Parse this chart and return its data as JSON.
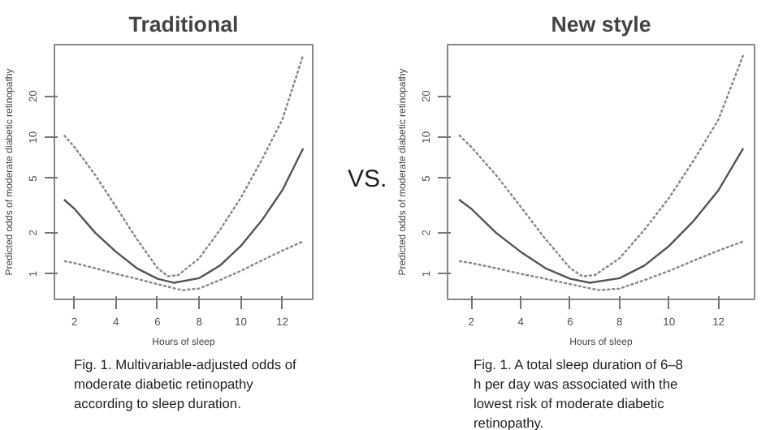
{
  "chart_data": [
    {
      "type": "line",
      "title": "Traditional",
      "xlabel": "Hours of sleep",
      "ylabel": "Predicted odds of moderate diabetic retinopathy",
      "log": "y",
      "grid": false,
      "xlim": [
        1.04,
        13.46
      ],
      "ylim": [
        0.65,
        47.8
      ],
      "xticks": [
        2,
        4,
        6,
        8,
        10,
        12
      ],
      "yticks": [
        1,
        2,
        5,
        10,
        20
      ],
      "series": [
        {
          "color": "#555555",
          "line_style": "solid",
          "x": [
            1.5,
            2,
            3,
            4,
            5,
            6,
            6.8,
            8,
            9,
            10,
            11,
            12,
            13
          ],
          "values": [
            3.5,
            3.0,
            2.0,
            1.45,
            1.1,
            0.92,
            0.86,
            0.93,
            1.15,
            1.6,
            2.45,
            4.1,
            8.3
          ]
        },
        {
          "color": "#888888",
          "line_style": "dotted",
          "x": [
            1.5,
            2,
            3,
            4,
            5,
            6,
            6.5,
            7,
            8,
            9,
            10,
            11,
            12,
            13
          ],
          "values": [
            10.4,
            8.5,
            5.3,
            3.1,
            1.8,
            1.1,
            0.96,
            0.98,
            1.3,
            2.1,
            3.6,
            6.8,
            13.5,
            40
          ]
        },
        {
          "color": "#888888",
          "line_style": "dotted",
          "x": [
            1.5,
            2,
            3,
            4,
            5,
            6,
            7,
            7.2,
            8,
            9,
            10,
            11,
            12,
            13
          ],
          "values": [
            1.24,
            1.2,
            1.1,
            1.0,
            0.92,
            0.84,
            0.77,
            0.76,
            0.78,
            0.9,
            1.05,
            1.25,
            1.48,
            1.73
          ]
        }
      ],
      "annotations": [
        "Fig. 1. Multivariable-adjusted odds of moderate diabetic retinopathy according to sleep duration.",
        "VS."
      ]
    },
    {
      "type": "line",
      "title": "New style",
      "xlabel": "Hours of sleep",
      "ylabel": "Predicted odds of moderate diabetic retinopathy",
      "log": "y",
      "grid": false,
      "xlim": [
        1.04,
        13.46
      ],
      "ylim": [
        0.65,
        47.8
      ],
      "xticks": [
        2,
        4,
        6,
        8,
        10,
        12
      ],
      "yticks": [
        1,
        2,
        5,
        10,
        20
      ],
      "series": [
        {
          "color": "#555555",
          "line_style": "solid",
          "x": [
            1.5,
            2,
            3,
            4,
            5,
            6,
            6.8,
            8,
            9,
            10,
            11,
            12,
            13
          ],
          "values": [
            3.5,
            3.0,
            2.0,
            1.45,
            1.1,
            0.92,
            0.86,
            0.93,
            1.15,
            1.6,
            2.45,
            4.1,
            8.3
          ]
        },
        {
          "color": "#888888",
          "line_style": "dotted",
          "x": [
            1.5,
            2,
            3,
            4,
            5,
            6,
            6.5,
            7,
            8,
            9,
            10,
            11,
            12,
            13
          ],
          "values": [
            10.4,
            8.5,
            5.3,
            3.1,
            1.8,
            1.1,
            0.96,
            0.98,
            1.3,
            2.1,
            3.6,
            6.8,
            13.5,
            40
          ]
        },
        {
          "color": "#888888",
          "line_style": "dotted",
          "x": [
            1.5,
            2,
            3,
            4,
            5,
            6,
            7,
            7.2,
            8,
            9,
            10,
            11,
            12,
            13
          ],
          "values": [
            1.24,
            1.2,
            1.1,
            1.0,
            0.92,
            0.84,
            0.77,
            0.76,
            0.78,
            0.9,
            1.05,
            1.25,
            1.48,
            1.73
          ]
        }
      ],
      "annotations": [
        "Fig. 1. A total sleep duration of 6–8 h per day was associated with the lowest risk of moderate diabetic retinopathy."
      ]
    }
  ]
}
